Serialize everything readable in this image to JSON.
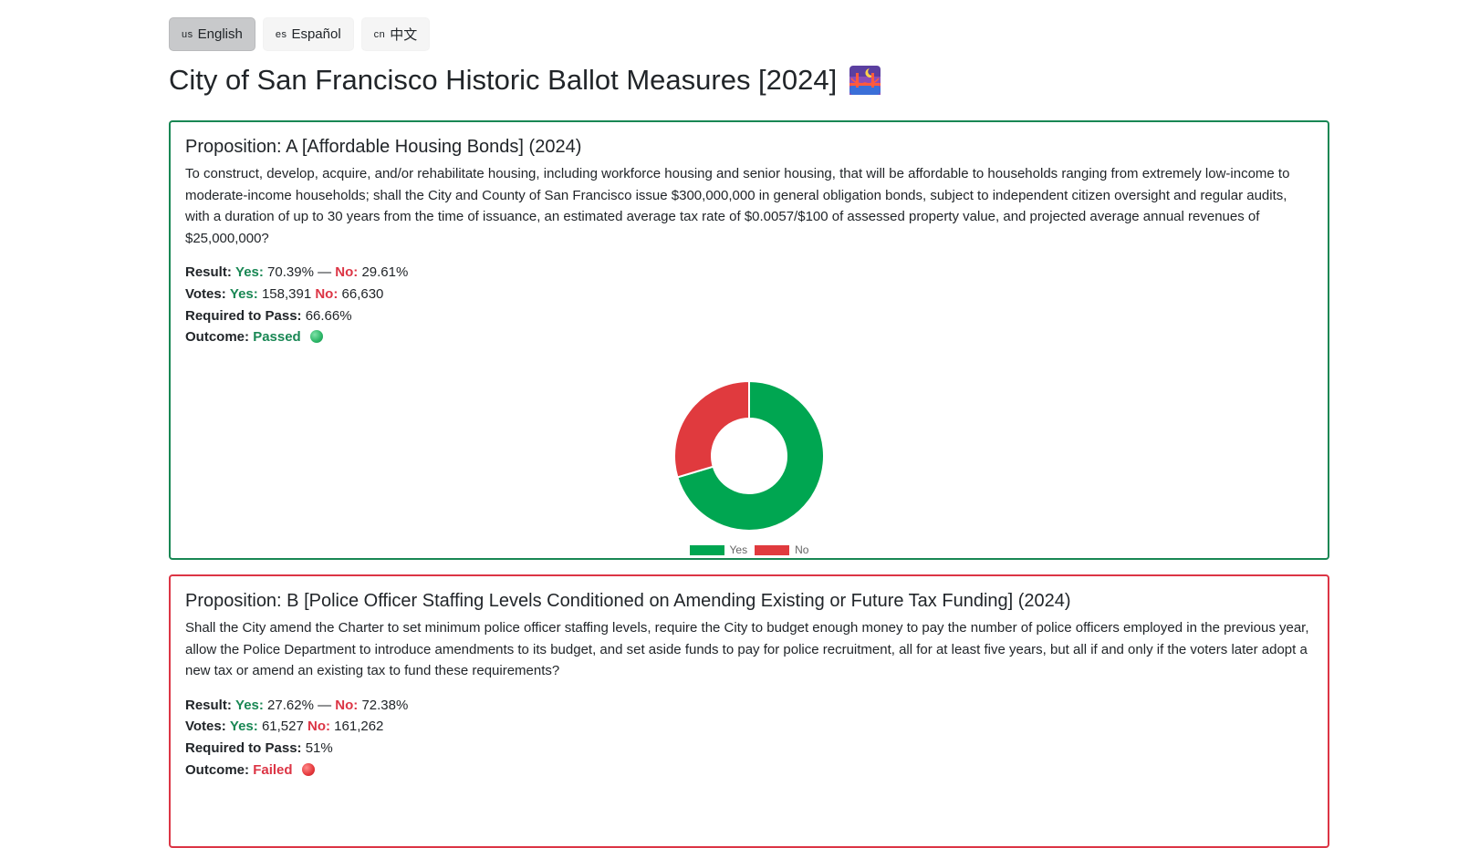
{
  "languages": [
    {
      "code": "us",
      "label": "English",
      "active": true
    },
    {
      "code": "es",
      "label": "Español",
      "active": false
    },
    {
      "code": "cn",
      "label": "中文",
      "active": false
    }
  ],
  "page_title": "City of San Francisco Historic Ballot Measures [2024]",
  "title_icon": "bridge-at-night-icon",
  "colors": {
    "yes": "#00a651",
    "no": "#e03a3e",
    "passed_border": "#198754",
    "failed_border": "#dc3545"
  },
  "propositions": [
    {
      "title": "Proposition: A [Affordable Housing Bonds] (2024)",
      "description": "To construct, develop, acquire, and/or rehabilitate housing, including workforce housing and senior housing, that will be affordable to households ranging from extremely low-income to moderate-income households; shall the City and County of San Francisco issue $300,000,000 in general obligation bonds, subject to independent citizen oversight and regular audits, with a duration of up to 30 years from the time of issuance, an estimated average tax rate of $0.0057/$100 of assessed property value, and projected average annual revenues of $25,000,000?",
      "result_label": "Result:",
      "yes_label": "Yes:",
      "no_label": "No:",
      "yes_pct": "70.39%",
      "no_pct": "29.61%",
      "separator": "—",
      "votes_label": "Votes:",
      "yes_votes": "158,391",
      "no_votes": "66,630",
      "required_label": "Required to Pass:",
      "required": "66.66%",
      "outcome_label": "Outcome:",
      "outcome": "Passed",
      "outcome_icon": "green-circle-icon"
    },
    {
      "title": "Proposition: B [Police Officer Staffing Levels Conditioned on Amending Existing or Future Tax Funding] (2024)",
      "description": "Shall the City amend the Charter to set minimum police officer staffing levels, require the City to budget enough money to pay the number of police officers employed in the previous year, allow the Police Department to introduce amendments to its budget, and set aside funds to pay for police recruitment, all for at least five years, but all if and only if the voters later adopt a new tax or amend an existing tax to fund these requirements?",
      "result_label": "Result:",
      "yes_label": "Yes:",
      "no_label": "No:",
      "yes_pct": "27.62%",
      "no_pct": "72.38%",
      "separator": "—",
      "votes_label": "Votes:",
      "yes_votes": "61,527",
      "no_votes": "161,262",
      "required_label": "Required to Pass:",
      "required": "51%",
      "outcome_label": "Outcome:",
      "outcome": "Failed",
      "outcome_icon": "red-circle-icon"
    }
  ],
  "chart_data": {
    "type": "pie",
    "variant": "doughnut",
    "categories": [
      "Yes",
      "No"
    ],
    "values": [
      158391,
      66630
    ],
    "colors": [
      "#00a651",
      "#e03a3e"
    ],
    "legend": "bottom",
    "title": ""
  }
}
